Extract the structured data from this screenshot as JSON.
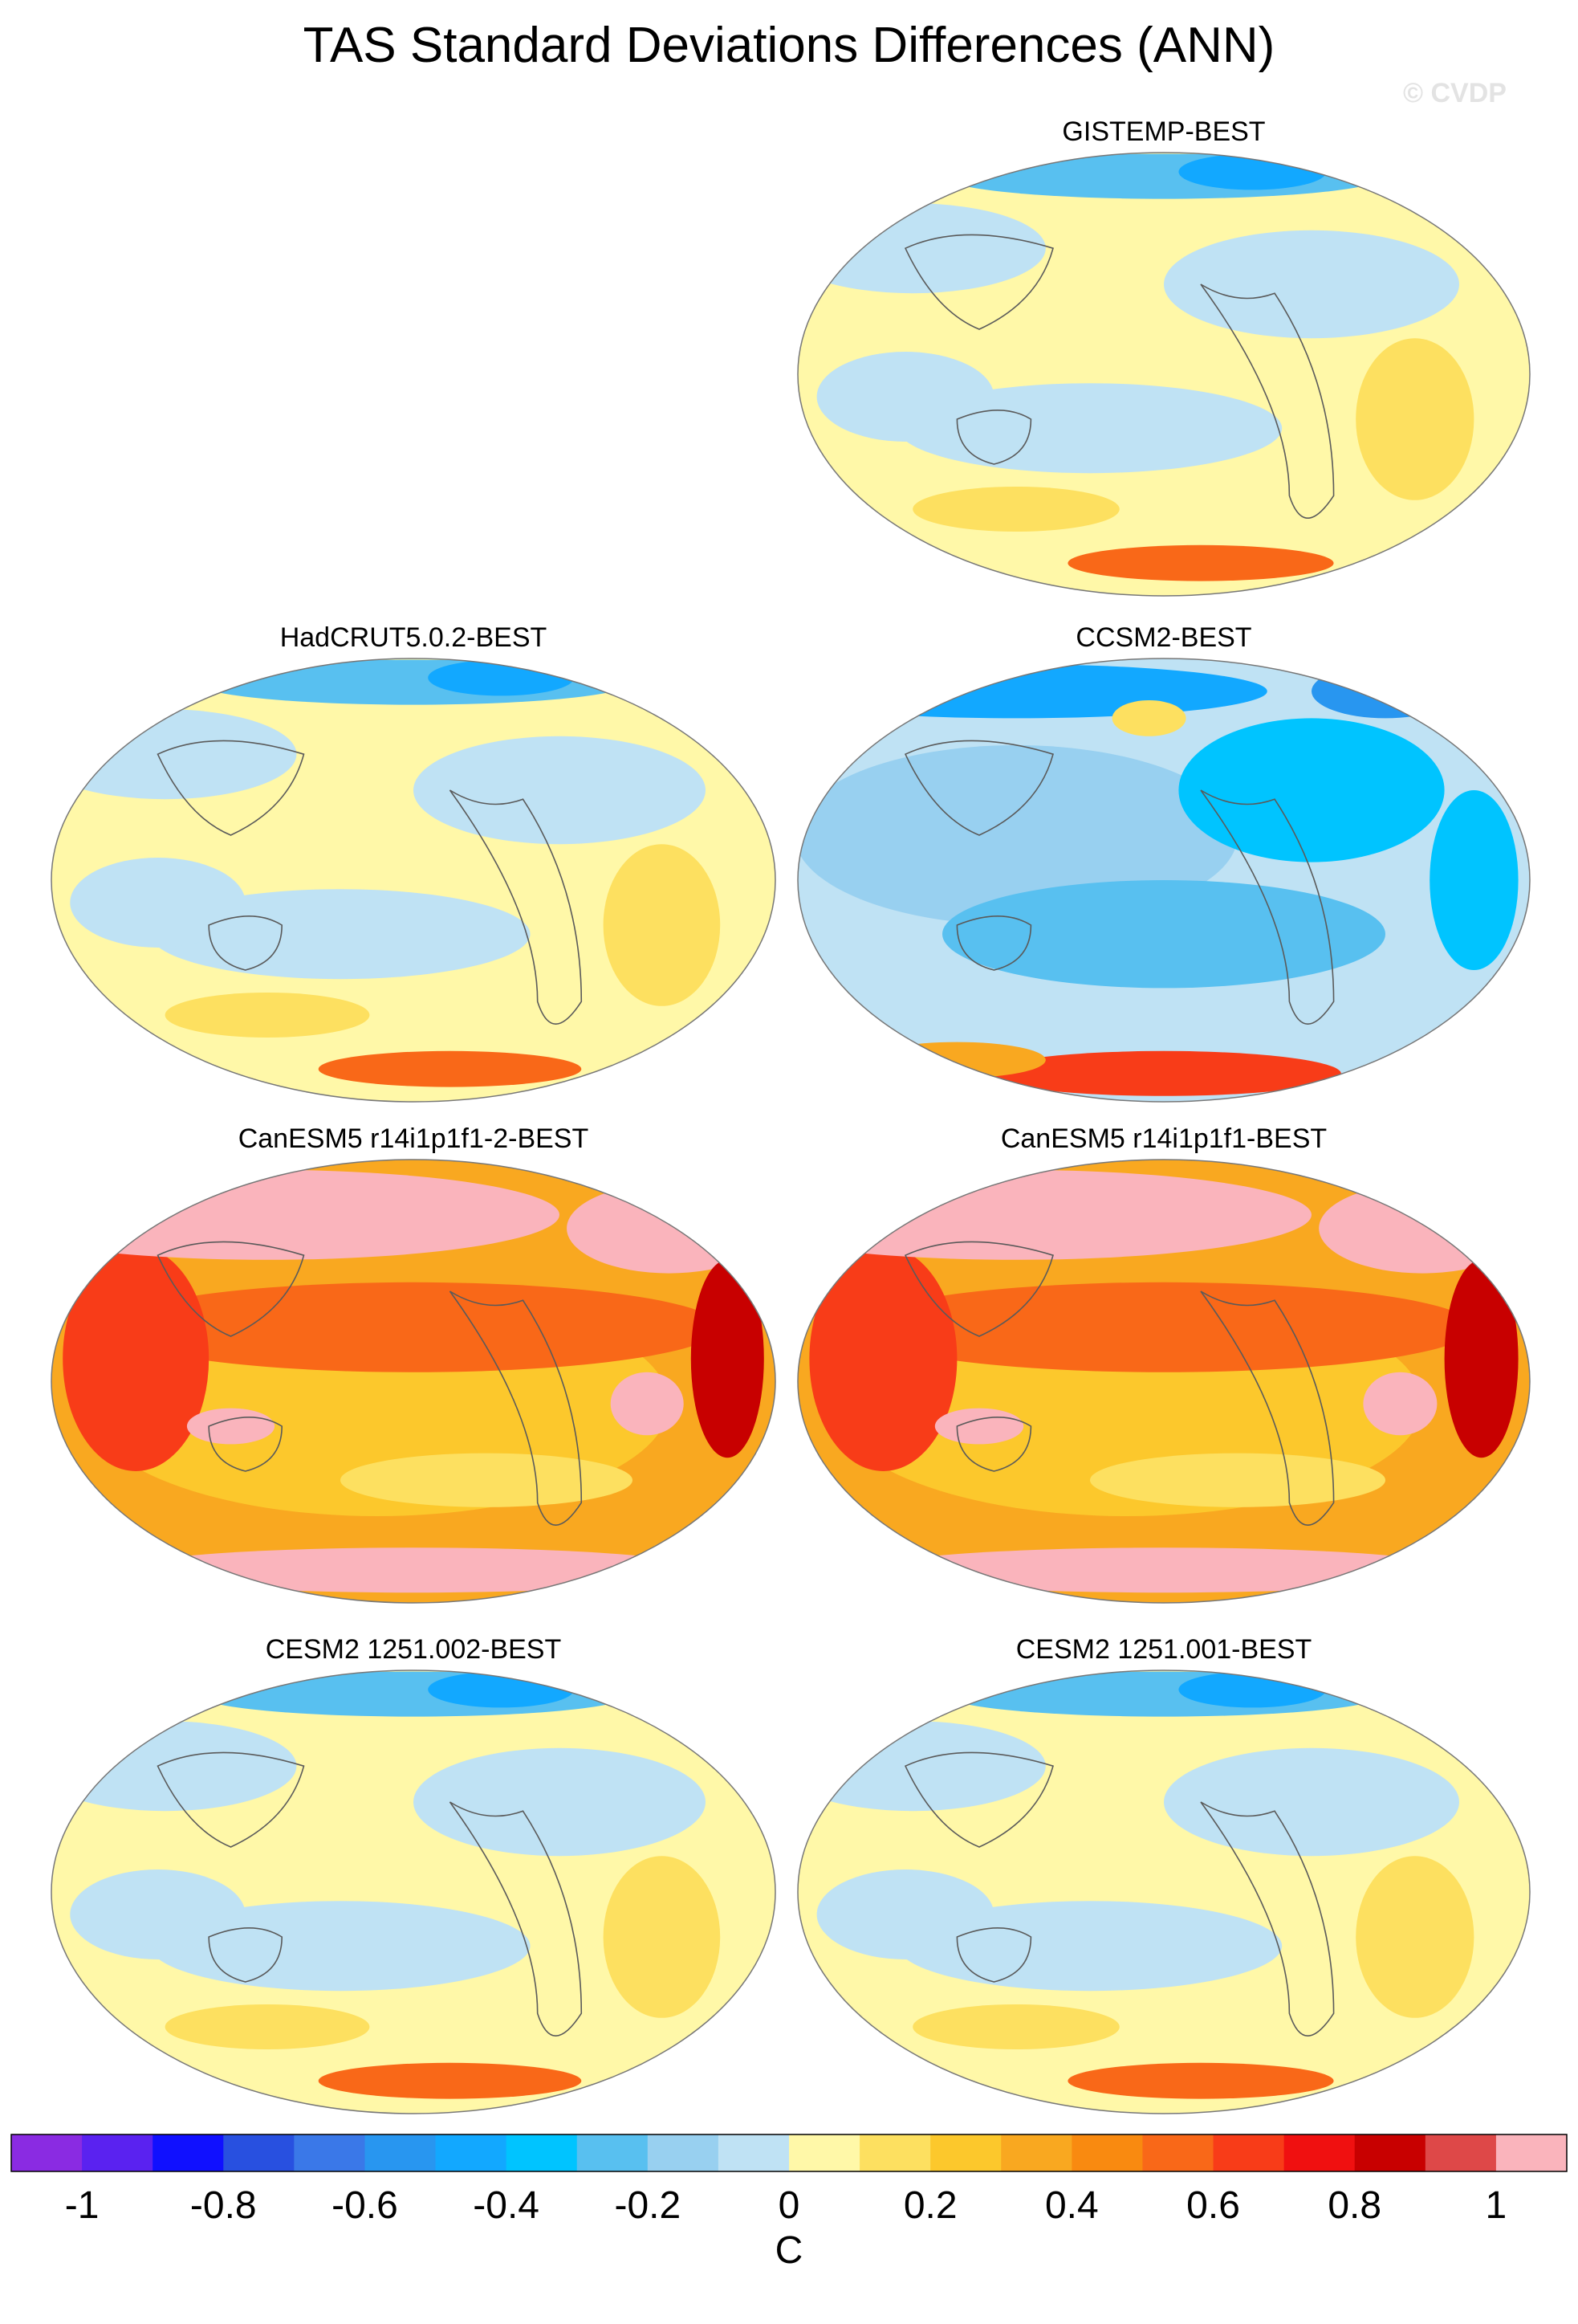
{
  "title": "TAS Standard Deviations Differences (ANN)",
  "watermark": "© CVDP",
  "panels": [
    {
      "id": "gistemp",
      "title": "GISTEMP-BEST",
      "scheme": "mixed"
    },
    {
      "id": "hadcrut",
      "title": "HadCRUT5.0.2-BEST",
      "scheme": "mixed"
    },
    {
      "id": "ccsm2",
      "title": "CCSM2-BEST",
      "scheme": "cool"
    },
    {
      "id": "canesm5b",
      "title": "CanESM5 r14i1p1f1-2-BEST",
      "scheme": "hot"
    },
    {
      "id": "canesm5a",
      "title": "CanESM5 r14i1p1f1-BEST",
      "scheme": "hot"
    },
    {
      "id": "cesm2b",
      "title": "CESM2 1251.002-BEST",
      "scheme": "mixed"
    },
    {
      "id": "cesm2a",
      "title": "CESM2 1251.001-BEST",
      "scheme": "mixed"
    }
  ],
  "colorbar": {
    "unit": "C",
    "tick_labels": [
      "-1",
      "-0.8",
      "-0.6",
      "-0.4",
      "-0.2",
      "0",
      "0.2",
      "0.4",
      "0.6",
      "0.8",
      "1"
    ],
    "colors": [
      "#8a2be2",
      "#5a22f0",
      "#1010ff",
      "#2850e0",
      "#3a78e8",
      "#2896f0",
      "#12a8ff",
      "#00c4ff",
      "#58c0f0",
      "#98d0f0",
      "#bfe2f4",
      "#fff8a8",
      "#fde060",
      "#fcc82c",
      "#f9a820",
      "#f98a10",
      "#f96818",
      "#f83c18",
      "#f01010",
      "#c80000",
      "#de4848",
      "#fab4bc"
    ]
  }
}
